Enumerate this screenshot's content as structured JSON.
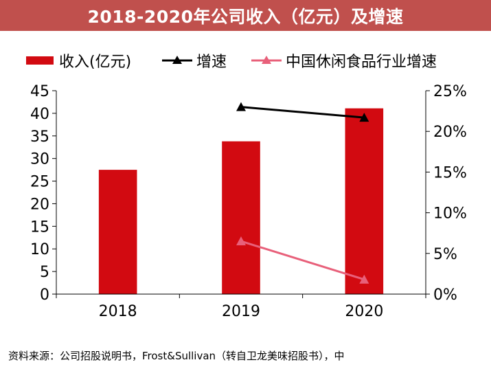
{
  "title": "2018-2020年公司收入（亿元）及增速",
  "source": "资料来源：公司招股说明书，Frost&Sullivan（转自卫龙美味招股书），中",
  "colors": {
    "title_bg": "#c0504d",
    "bar": "#d20a11",
    "growth": "#000000",
    "industry": "#e8607a"
  },
  "chart_data": {
    "type": "bar",
    "title": "2018-2020年公司收入（亿元）及增速",
    "categories": [
      "2018",
      "2019",
      "2020"
    ],
    "series": [
      {
        "name": "收入(亿元)",
        "type": "bar",
        "axis": "left",
        "values": [
          27.5,
          33.8,
          41.1
        ]
      },
      {
        "name": "增速",
        "type": "line",
        "axis": "right",
        "values": [
          null,
          0.23,
          0.217
        ]
      },
      {
        "name": "中国休闲食品行业增速",
        "type": "line",
        "axis": "right",
        "values": [
          null,
          0.065,
          0.018
        ]
      }
    ],
    "ylim": [
      0,
      45
    ],
    "y2lim": [
      0,
      0.25
    ],
    "yticks": [
      0,
      5,
      10,
      15,
      20,
      25,
      30,
      35,
      40,
      45
    ],
    "y2ticks": [
      0,
      0.05,
      0.1,
      0.15,
      0.2,
      0.25
    ],
    "y2tick_labels": [
      "0%",
      "5%",
      "10%",
      "15%",
      "20%",
      "25%"
    ],
    "legend": [
      "收入(亿元)",
      "增速",
      "中国休闲食品行业增速"
    ],
    "legend_position": "top"
  }
}
